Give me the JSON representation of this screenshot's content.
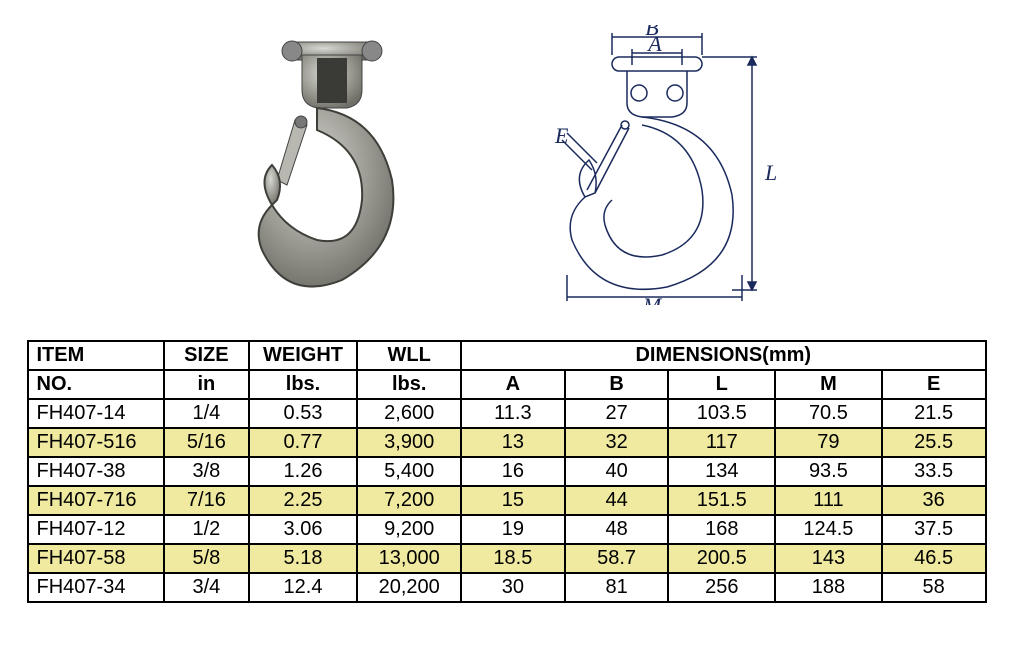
{
  "table": {
    "header_row1": {
      "item": "ITEM",
      "size": "SIZE",
      "weight": "WEIGHT",
      "wll": "WLL",
      "dimensions": "DIMENSIONS(mm)"
    },
    "header_row2": {
      "no": "NO.",
      "in": "in",
      "lbs1": "lbs.",
      "lbs2": "lbs.",
      "a": "A",
      "b": "B",
      "l": "L",
      "m": "M",
      "e": "E"
    },
    "rows": [
      {
        "hl": false,
        "cells": [
          "FH407-14",
          "1/4",
          "0.53",
          "2,600",
          "11.3",
          "27",
          "103.5",
          "70.5",
          "21.5"
        ]
      },
      {
        "hl": true,
        "cells": [
          "FH407-516",
          "5/16",
          "0.77",
          "3,900",
          "13",
          "32",
          "117",
          "79",
          "25.5"
        ]
      },
      {
        "hl": false,
        "cells": [
          "FH407-38",
          "3/8",
          "1.26",
          "5,400",
          "16",
          "40",
          "134",
          "93.5",
          "33.5"
        ]
      },
      {
        "hl": true,
        "cells": [
          "FH407-716",
          "7/16",
          "2.25",
          "7,200",
          "15",
          "44",
          "151.5",
          "111",
          "36"
        ]
      },
      {
        "hl": false,
        "cells": [
          "FH407-12",
          "1/2",
          "3.06",
          "9,200",
          "19",
          "48",
          "168",
          "124.5",
          "37.5"
        ]
      },
      {
        "hl": true,
        "cells": [
          "FH407-58",
          "5/8",
          "5.18",
          "13,000",
          "18.5",
          "58.7",
          "200.5",
          "143",
          "46.5"
        ]
      },
      {
        "hl": false,
        "cells": [
          "FH407-34",
          "3/4",
          "12.4",
          "20,200",
          "30",
          "81",
          "256",
          "188",
          "58"
        ]
      }
    ],
    "highlight_color": "#f0eaa0",
    "border_color": "#000000",
    "font_size": 20
  },
  "diagram_labels": {
    "A": "A",
    "B": "B",
    "L": "L",
    "M": "M",
    "E": "E"
  }
}
